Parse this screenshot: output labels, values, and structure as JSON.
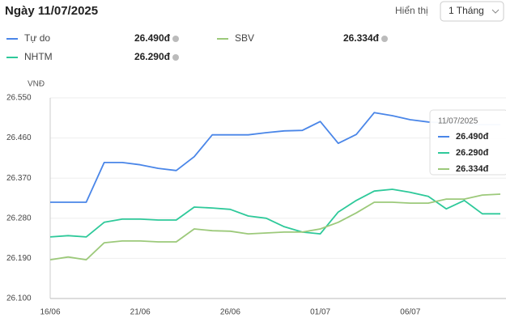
{
  "header": {
    "title": "Ngày 11/07/2025",
    "display_label": "Hiển thị",
    "period": "1 Tháng"
  },
  "chart_data": {
    "type": "line",
    "y_label": "VNĐ",
    "categories": [
      "16/06",
      null,
      null,
      null,
      null,
      "21/06",
      null,
      null,
      null,
      null,
      "26/06",
      null,
      null,
      null,
      null,
      "01/07",
      null,
      null,
      null,
      null,
      "06/07",
      null,
      null,
      null,
      null,
      null
    ],
    "series": [
      {
        "name": "Tự do",
        "color": "#4a86e8",
        "current_label": "26.490đ",
        "values": [
          26316,
          26316,
          26316,
          26405,
          26405,
          26400,
          26392,
          26387,
          26418,
          26467,
          26467,
          26467,
          26472,
          26476,
          26477,
          26497,
          26448,
          26468,
          26517,
          26510,
          26501,
          26496,
          26494,
          26492,
          26490,
          26490
        ]
      },
      {
        "name": "NHTM",
        "color": "#2ec99a",
        "current_label": "26.290đ",
        "values": [
          26238,
          26241,
          26238,
          26271,
          26278,
          26278,
          26276,
          26276,
          26305,
          26303,
          26300,
          26285,
          26280,
          26261,
          26249,
          26245,
          26294,
          26320,
          26341,
          26345,
          26338,
          26329,
          26301,
          26320,
          26290,
          26290
        ]
      },
      {
        "name": "SBV",
        "color": "#9cc97a",
        "current_label": "26.334đ",
        "values": [
          26187,
          26193,
          26187,
          26225,
          26229,
          26229,
          26227,
          26227,
          26256,
          26252,
          26251,
          26245,
          26247,
          26249,
          26249,
          26256,
          26271,
          26292,
          26316,
          26316,
          26314,
          26314,
          26323,
          26323,
          26332,
          26334
        ]
      }
    ],
    "ylim": [
      26100,
      26550
    ],
    "yticks": [
      {
        "value": 26100,
        "label": "26.100"
      },
      {
        "value": 26190,
        "label": "26.190"
      },
      {
        "value": 26280,
        "label": "26.280"
      },
      {
        "value": 26370,
        "label": "26.370"
      },
      {
        "value": 26460,
        "label": "26.460"
      },
      {
        "value": 26550,
        "label": "26.550"
      }
    ],
    "grid": true,
    "tooltip": {
      "date": "11/07/2025",
      "order": [
        0,
        1,
        2
      ]
    }
  }
}
